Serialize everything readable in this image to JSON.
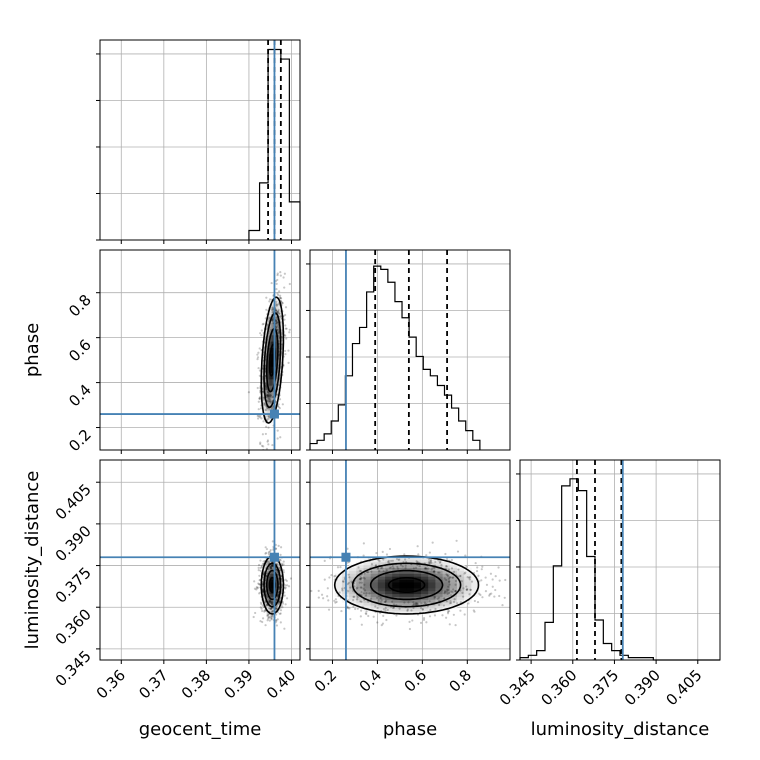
{
  "chart_data": {
    "type": "corner",
    "parameters": [
      "geocent_time",
      "phase",
      "luminosity_distance"
    ],
    "truths": {
      "geocent_time": 0.396,
      "phase": 0.26,
      "luminosity_distance": 0.378
    },
    "truth_color": "#4682b4",
    "grid": true,
    "axes": {
      "geocent_time": {
        "lim": [
          0.355,
          0.402
        ],
        "ticks": [
          0.36,
          0.37,
          0.38,
          0.39,
          0.4
        ],
        "tick_labels": [
          "0.36",
          "0.37",
          "0.38",
          "0.39",
          "0.40"
        ]
      },
      "phase": {
        "lim": [
          0.1,
          0.99
        ],
        "ticks": [
          0.2,
          0.4,
          0.6,
          0.8
        ],
        "tick_labels": [
          "0.2",
          "0.4",
          "0.6",
          "0.8"
        ]
      },
      "luminosity_distance": {
        "lim": [
          0.341,
          0.413
        ],
        "ticks": [
          0.345,
          0.36,
          0.375,
          0.39,
          0.405
        ],
        "tick_labels": [
          "0.345",
          "0.360",
          "0.375",
          "0.390",
          "0.405"
        ]
      }
    },
    "histograms": [
      {
        "parameter": "geocent_time",
        "bin_edges": [
          0.39,
          0.3925,
          0.3945,
          0.396,
          0.3975,
          0.3995,
          0.402
        ],
        "counts": [
          2,
          12,
          40,
          40,
          38,
          8
        ],
        "quantiles": [
          0.3945,
          0.396,
          0.3975
        ],
        "ylim": [
          0,
          42
        ]
      },
      {
        "parameter": "phase",
        "bin_start": 0.1,
        "bin_width": 0.0315,
        "counts": [
          2,
          3,
          5,
          9,
          14,
          23,
          33,
          38,
          49,
          57,
          56,
          52,
          46,
          41,
          35,
          29,
          25,
          23,
          20,
          17,
          13,
          9,
          6,
          3
        ],
        "quantiles": [
          0.39,
          0.54,
          0.71
        ],
        "ylim": [
          0,
          62
        ]
      },
      {
        "parameter": "luminosity_distance",
        "bin_start": 0.341,
        "bin_width": 0.003,
        "counts": [
          1,
          2,
          4,
          16,
          40,
          74,
          77,
          72,
          44,
          17,
          7,
          4,
          2,
          1,
          1,
          1,
          0,
          0,
          0,
          0,
          0,
          0,
          0,
          0
        ],
        "quantiles": [
          0.3615,
          0.368,
          0.3775
        ],
        "ylim": [
          0,
          85
        ]
      }
    ],
    "joint_2d": [
      {
        "x": "geocent_time",
        "y": "phase",
        "center": [
          0.3955,
          0.5
        ],
        "sd": [
          0.0013,
          0.14
        ],
        "rho": 0.35
      },
      {
        "x": "geocent_time",
        "y": "luminosity_distance",
        "center": [
          0.3955,
          0.368
        ],
        "sd": [
          0.0013,
          0.0052
        ],
        "rho": 0.0
      },
      {
        "x": "phase",
        "y": "luminosity_distance",
        "center": [
          0.53,
          0.368
        ],
        "sd": [
          0.16,
          0.0052
        ],
        "rho": 0.0
      }
    ],
    "contour_levels_sigma": [
      0.5,
      1.0,
      1.5,
      2.0
    ]
  }
}
